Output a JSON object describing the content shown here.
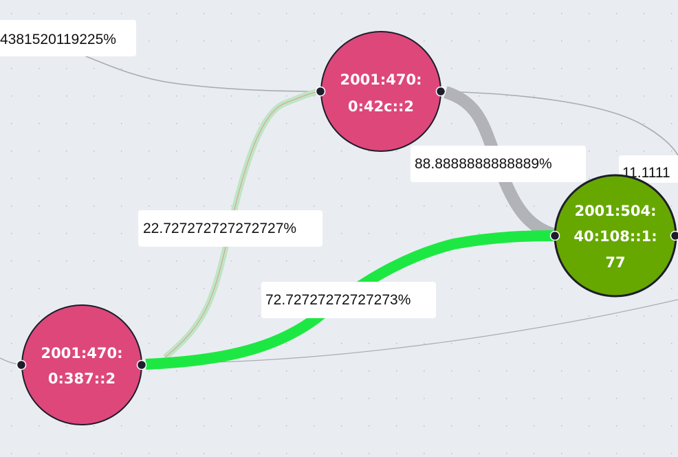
{
  "colors": {
    "background": "#e9edf1",
    "grid_dot": "#b7bcc3",
    "node_pink": "#de477a",
    "node_green": "#66a800",
    "node_stroke": "#1d1d2b",
    "edge_green": "#1de843",
    "edge_gray": "#b2b2b9",
    "edge_thin": "#a8acb3",
    "edge_pale_green": "#bfe5c4",
    "edge_pale_red": "#e08a8a",
    "label_bg": "#ffffff",
    "port": "#1d1d2b"
  },
  "nodes": [
    {
      "id": "n1",
      "color": "pink",
      "lines": [
        "2001:470:",
        "0:42c::2"
      ]
    },
    {
      "id": "n2",
      "color": "green",
      "lines": [
        "2001:504:",
        "40:108::1:",
        "77"
      ]
    },
    {
      "id": "n3",
      "color": "pink",
      "lines": [
        "2001:470:",
        "0:387::2"
      ]
    }
  ],
  "edge_labels": {
    "top_left": "4381520119225%",
    "n1_to_n2": "88.8888888888889%",
    "right_partial": "11.1111",
    "n3_to_n1": "22.727272727272727%",
    "n3_to_n2": "72.72727272727273%"
  }
}
